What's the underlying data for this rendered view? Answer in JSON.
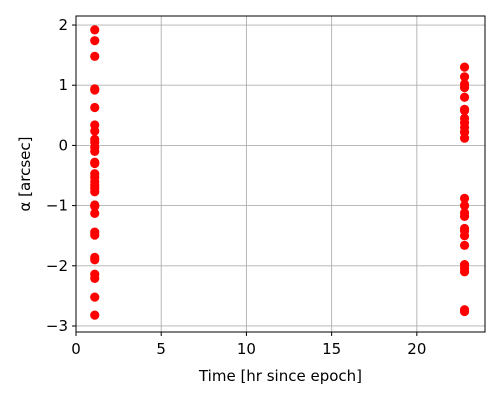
{
  "chart_data": {
    "type": "scatter",
    "title": "",
    "xlabel": "Time [hr since epoch]",
    "ylabel": "α [arcsec]",
    "xlim": [
      0,
      24
    ],
    "ylim": [
      -3.1,
      2.15
    ],
    "xticks": [
      0,
      5,
      10,
      15,
      20
    ],
    "yticks": [
      -3,
      -2,
      -1,
      0,
      1,
      2
    ],
    "grid": true,
    "marker_color": "#ff0000",
    "series": [
      {
        "points": [
          {
            "x": 1.1,
            "y": 1.92
          },
          {
            "x": 1.1,
            "y": 1.74
          },
          {
            "x": 1.1,
            "y": 1.48
          },
          {
            "x": 1.1,
            "y": 0.94
          },
          {
            "x": 1.1,
            "y": 0.92
          },
          {
            "x": 1.1,
            "y": 0.63
          },
          {
            "x": 1.1,
            "y": 0.34
          },
          {
            "x": 1.1,
            "y": 0.24
          },
          {
            "x": 1.1,
            "y": 0.1
          },
          {
            "x": 1.1,
            "y": 0.05
          },
          {
            "x": 1.1,
            "y": -0.03
          },
          {
            "x": 1.1,
            "y": -0.1
          },
          {
            "x": 1.1,
            "y": -0.28
          },
          {
            "x": 1.1,
            "y": -0.3
          },
          {
            "x": 1.1,
            "y": -0.47
          },
          {
            "x": 1.1,
            "y": -0.53
          },
          {
            "x": 1.1,
            "y": -0.6
          },
          {
            "x": 1.1,
            "y": -0.66
          },
          {
            "x": 1.1,
            "y": -0.71
          },
          {
            "x": 1.1,
            "y": -0.77
          },
          {
            "x": 1.1,
            "y": -0.99
          },
          {
            "x": 1.1,
            "y": -1.01
          },
          {
            "x": 1.1,
            "y": -1.13
          },
          {
            "x": 1.1,
            "y": -1.44
          },
          {
            "x": 1.1,
            "y": -1.49
          },
          {
            "x": 1.1,
            "y": -1.86
          },
          {
            "x": 1.1,
            "y": -1.9
          },
          {
            "x": 1.1,
            "y": -2.14
          },
          {
            "x": 1.1,
            "y": -2.21
          },
          {
            "x": 1.1,
            "y": -2.52
          },
          {
            "x": 1.1,
            "y": -2.82
          },
          {
            "x": 22.8,
            "y": 1.3
          },
          {
            "x": 22.8,
            "y": 1.14
          },
          {
            "x": 22.8,
            "y": 1.02
          },
          {
            "x": 22.8,
            "y": 0.96
          },
          {
            "x": 22.8,
            "y": 0.8
          },
          {
            "x": 22.8,
            "y": 0.6
          },
          {
            "x": 22.8,
            "y": 0.58
          },
          {
            "x": 22.8,
            "y": 0.45
          },
          {
            "x": 22.8,
            "y": 0.38
          },
          {
            "x": 22.8,
            "y": 0.3
          },
          {
            "x": 22.8,
            "y": 0.22
          },
          {
            "x": 22.8,
            "y": 0.12
          },
          {
            "x": 22.8,
            "y": -0.88
          },
          {
            "x": 22.8,
            "y": -1.0
          },
          {
            "x": 22.8,
            "y": -1.12
          },
          {
            "x": 22.8,
            "y": -1.18
          },
          {
            "x": 22.8,
            "y": -1.38
          },
          {
            "x": 22.8,
            "y": -1.42
          },
          {
            "x": 22.8,
            "y": -1.5
          },
          {
            "x": 22.8,
            "y": -1.66
          },
          {
            "x": 22.8,
            "y": -1.98
          },
          {
            "x": 22.8,
            "y": -2.04
          },
          {
            "x": 22.8,
            "y": -2.1
          },
          {
            "x": 22.8,
            "y": -2.73
          },
          {
            "x": 22.8,
            "y": -2.76
          }
        ]
      }
    ]
  }
}
